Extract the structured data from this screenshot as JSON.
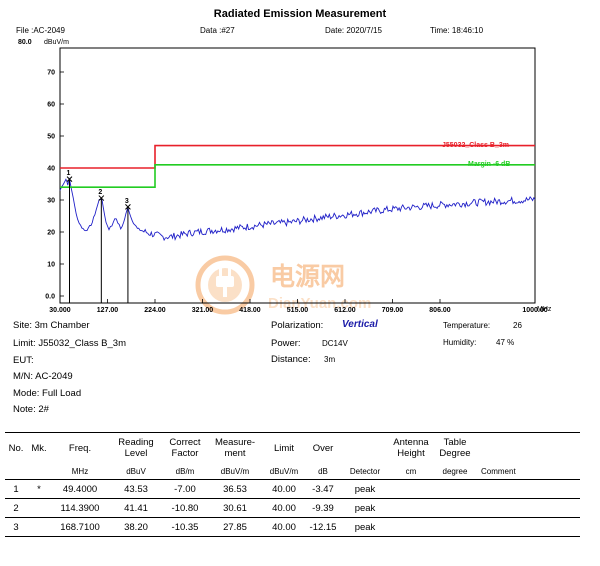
{
  "header": {
    "title": "Radiated Emission Measurement",
    "file": "File :AC-2049",
    "data": "Data :#27",
    "date": "Date: 2020/7/15",
    "time": "Time: 18:46:10"
  },
  "chart_data": {
    "type": "line",
    "ylabel_top": "80.0",
    "yunit": "dBuV/m",
    "xunit": "MHz",
    "xlim": [
      30,
      1000
    ],
    "ylim": [
      0,
      80
    ],
    "grid": false,
    "y_ticks": [
      "70",
      "60",
      "50",
      "40",
      "30",
      "20",
      "10",
      "0.0"
    ],
    "y_tick_values": [
      70,
      60,
      50,
      40,
      30,
      20,
      10,
      0
    ],
    "x_ticks": [
      "30.000",
      "127.00",
      "224.00",
      "321.00",
      "418.00",
      "515.00",
      "612.00",
      "709.00",
      "806.00",
      "1000.00"
    ],
    "x_tick_values": [
      30,
      127,
      224,
      321,
      418,
      515,
      612,
      709,
      806,
      1000
    ],
    "limit_line": {
      "name": "J55032_Class B_3m",
      "color": "#e8202a",
      "points": [
        [
          30,
          40
        ],
        [
          224,
          40
        ],
        [
          224,
          47
        ],
        [
          1000,
          47
        ]
      ]
    },
    "margin_line": {
      "name": "Margin -6 dB",
      "color": "#22cc22",
      "points": [
        [
          30,
          34
        ],
        [
          224,
          34
        ],
        [
          224,
          41
        ],
        [
          1000,
          41
        ]
      ]
    },
    "trace": {
      "color": "#2020c8",
      "points": [
        [
          30,
          33
        ],
        [
          36,
          35
        ],
        [
          42,
          36.5
        ],
        [
          46,
          35
        ],
        [
          49.4,
          36.53
        ],
        [
          54,
          33
        ],
        [
          60,
          28
        ],
        [
          66,
          24
        ],
        [
          72,
          22
        ],
        [
          80,
          20.5
        ],
        [
          88,
          21
        ],
        [
          96,
          23
        ],
        [
          104,
          27
        ],
        [
          110,
          30
        ],
        [
          114.39,
          30.61
        ],
        [
          118,
          28
        ],
        [
          124,
          23
        ],
        [
          130,
          21
        ],
        [
          136,
          22
        ],
        [
          142,
          24.5
        ],
        [
          148,
          23
        ],
        [
          154,
          21
        ],
        [
          160,
          23
        ],
        [
          168.71,
          27.85
        ],
        [
          174,
          25
        ],
        [
          180,
          23
        ],
        [
          188,
          21
        ],
        [
          196,
          20.5
        ],
        [
          204,
          20
        ],
        [
          214,
          19.5
        ],
        [
          224,
          19.2
        ],
        [
          240,
          18.5
        ],
        [
          260,
          18.6
        ],
        [
          280,
          19.2
        ],
        [
          300,
          19.8
        ],
        [
          340,
          20.5
        ],
        [
          380,
          21
        ],
        [
          420,
          21.8
        ],
        [
          460,
          22.5
        ],
        [
          500,
          23
        ],
        [
          540,
          24
        ],
        [
          580,
          24.8
        ],
        [
          620,
          25.5
        ],
        [
          660,
          26.3
        ],
        [
          700,
          27
        ],
        [
          740,
          27.6
        ],
        [
          780,
          28.1
        ],
        [
          820,
          28.6
        ],
        [
          860,
          29
        ],
        [
          900,
          29.4
        ],
        [
          940,
          29.7
        ],
        [
          980,
          30
        ],
        [
          1000,
          30.2
        ]
      ]
    },
    "markers": [
      {
        "label": "1",
        "x": 49.4,
        "y": 36.53
      },
      {
        "label": "2",
        "x": 114.39,
        "y": 30.61
      },
      {
        "label": "3",
        "x": 168.71,
        "y": 27.85
      }
    ]
  },
  "info": {
    "site": "Site:  3m Chamber",
    "limit": "Limit:  J55032_Class B_3m",
    "eut": "EUT:",
    "mn": "M/N:  AC-2049",
    "mode": "Mode:  Full Load",
    "note": "Note:  2#",
    "polarization_label": "Polarization:",
    "polarization_value": "Vertical",
    "power_label": "Power:",
    "power_value": "DC14V",
    "distance_label": "Distance:",
    "distance_value": "3m",
    "temperature_label": "Temperature:",
    "temperature_value": "26",
    "humidity_label": "Humidity:",
    "humidity_value": "47 %"
  },
  "watermark": {
    "cn": "电源网",
    "en": "DianYuan.com",
    "colors": {
      "orange": "#f5a15a",
      "light": "#f9c79a"
    }
  },
  "table": {
    "headers": {
      "no": "No.",
      "mk": "Mk.",
      "freq": "Freq.",
      "reading_1": "Reading",
      "reading_2": "Level",
      "correct_1": "Correct",
      "correct_2": "Factor",
      "meas_1": "Measure-",
      "meas_2": "ment",
      "limit": "Limit",
      "over": "Over",
      "ant_1": "Antenna",
      "ant_2": "Height",
      "tbl_1": "Table",
      "tbl_2": "Degree"
    },
    "units": {
      "freq": "MHz",
      "reading": "dBuV",
      "correct": "dB/m",
      "meas": "dBuV/m",
      "limit": "dBuV/m",
      "over": "dB",
      "detector": "Detector",
      "ant": "cm",
      "tbl": "degree",
      "comment": "Comment"
    },
    "rows": [
      {
        "no": "1",
        "mk": "*",
        "freq": "49.4000",
        "reading": "43.53",
        "correct": "-7.00",
        "meas": "36.53",
        "limit": "40.00",
        "over": "-3.47",
        "detector": "peak"
      },
      {
        "no": "2",
        "mk": "",
        "freq": "114.3900",
        "reading": "41.41",
        "correct": "-10.80",
        "meas": "30.61",
        "limit": "40.00",
        "over": "-9.39",
        "detector": "peak"
      },
      {
        "no": "3",
        "mk": "",
        "freq": "168.7100",
        "reading": "38.20",
        "correct": "-10.35",
        "meas": "27.85",
        "limit": "40.00",
        "over": "-12.15",
        "detector": "peak"
      }
    ]
  }
}
